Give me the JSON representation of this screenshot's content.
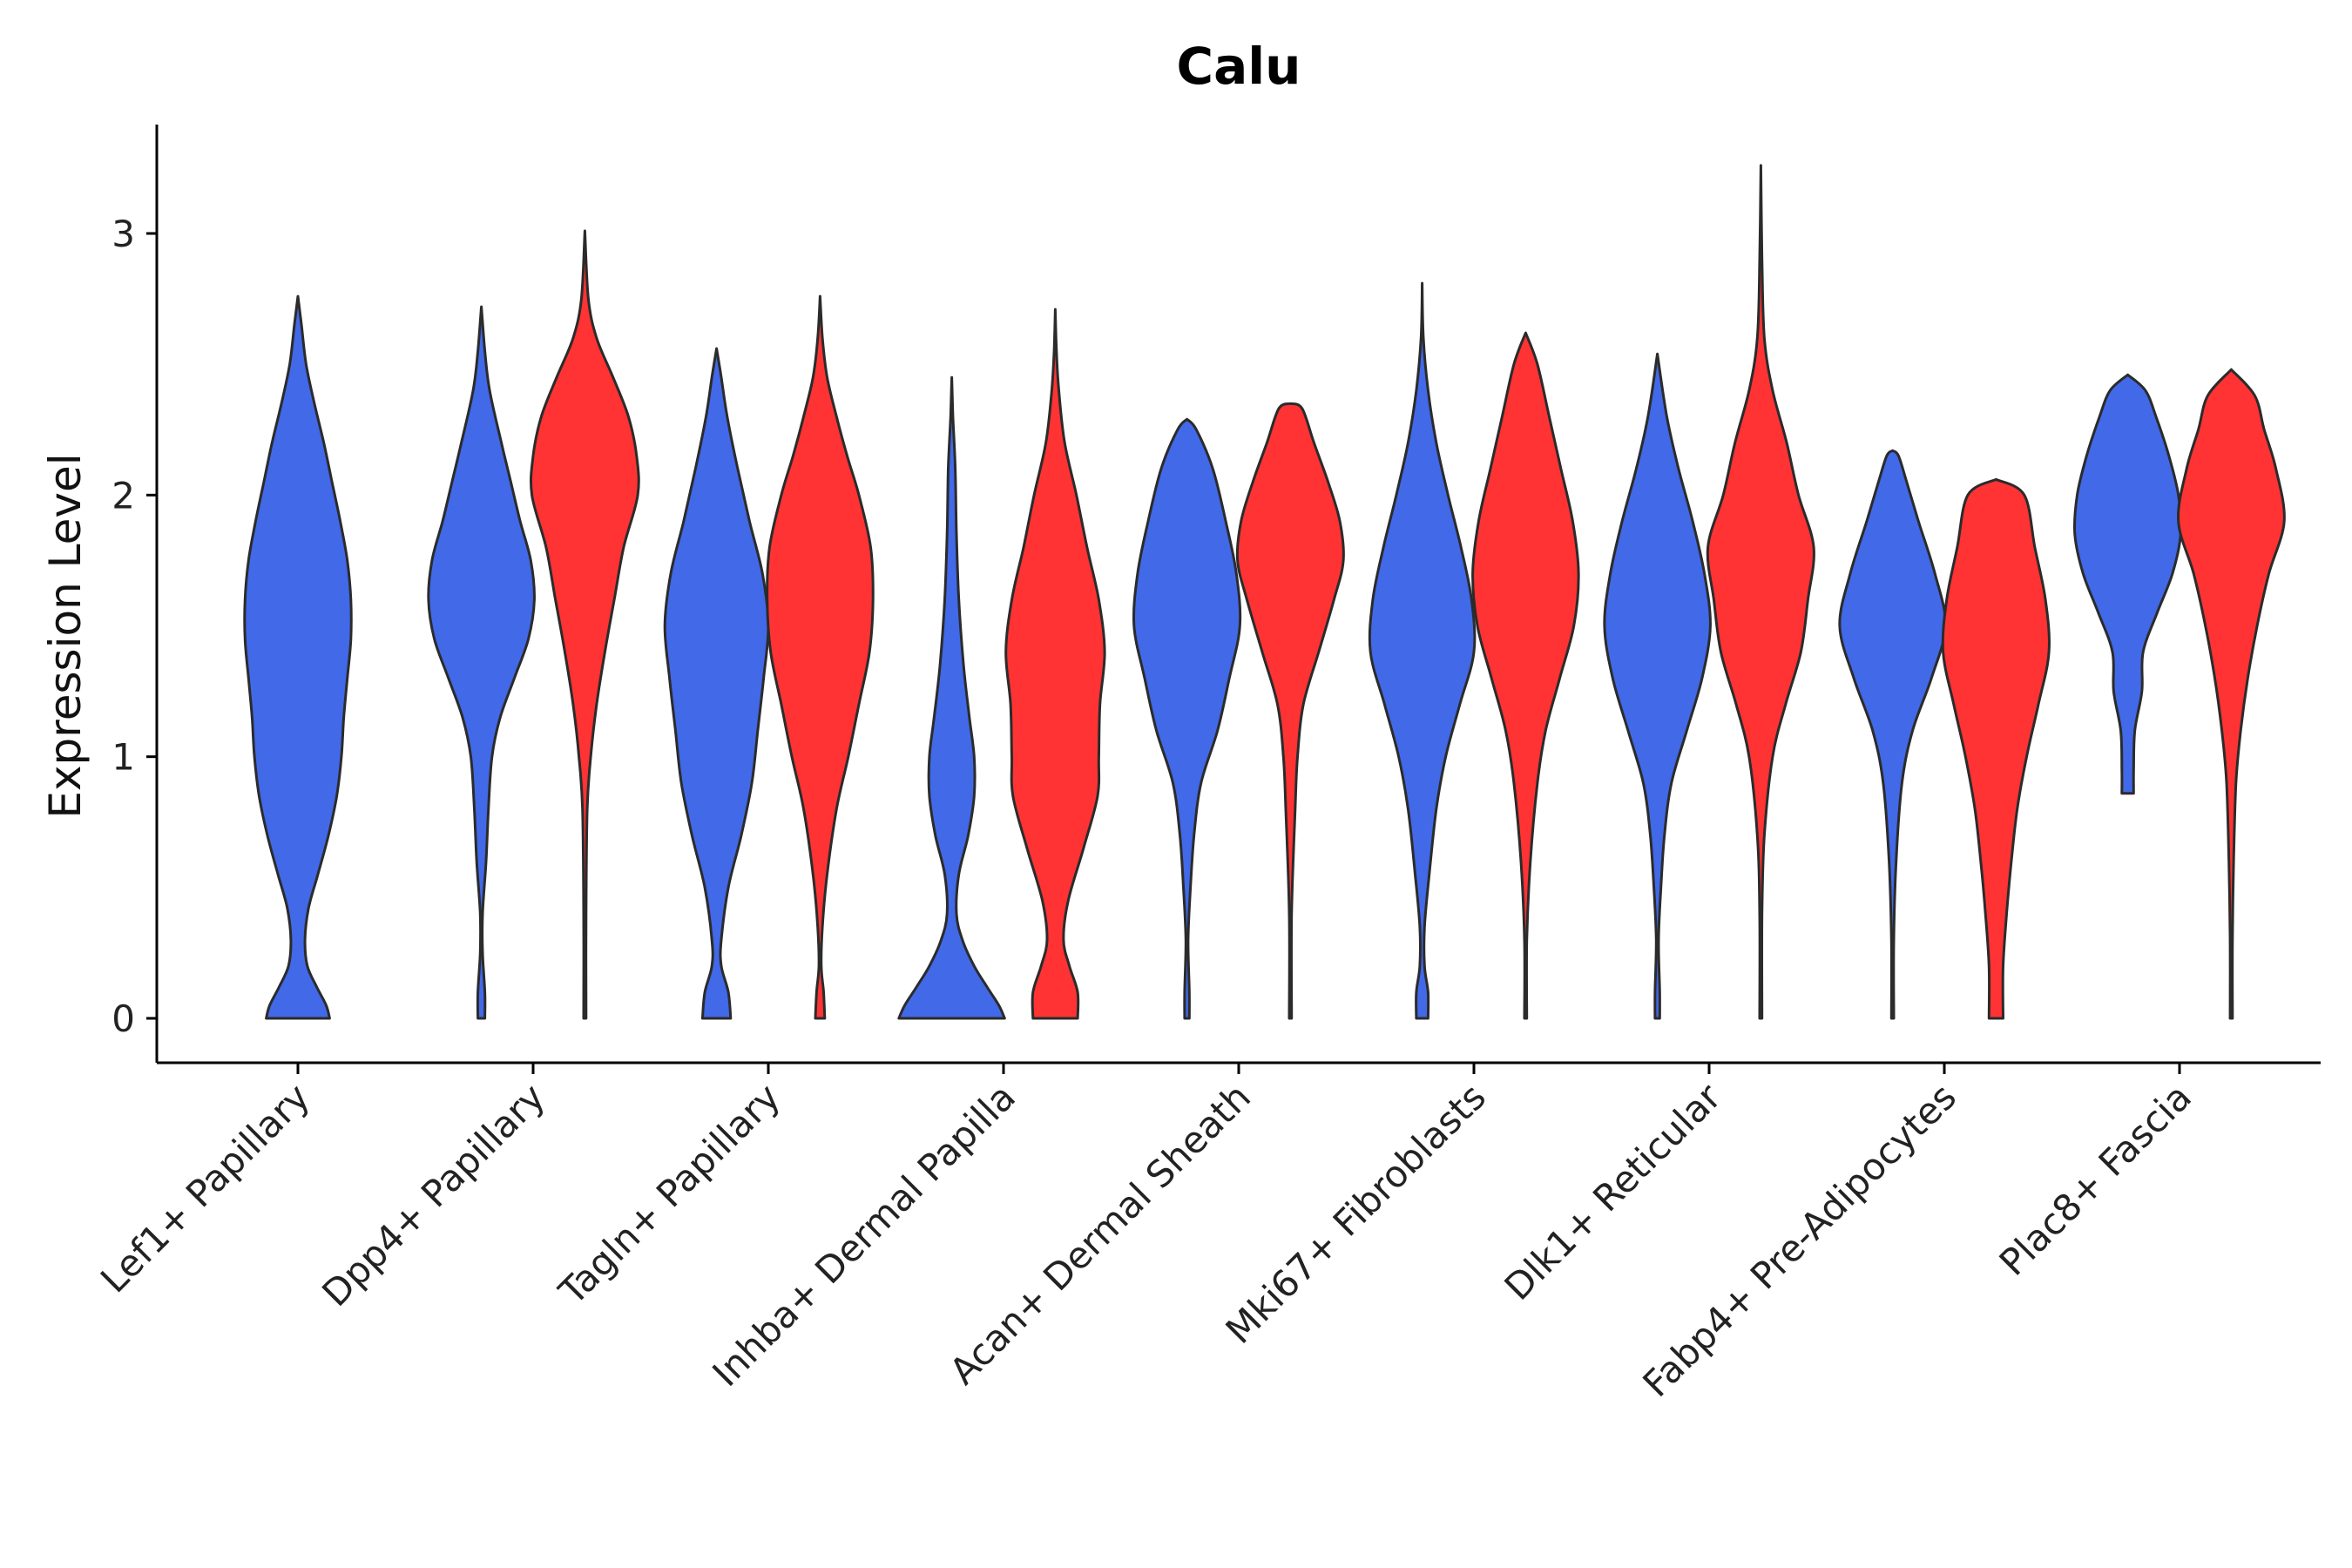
{
  "chart_data": {
    "type": "violin",
    "title": "Calu",
    "xlabel": "",
    "ylabel": "Expression Level",
    "ylim": [
      -0.16,
      3.42
    ],
    "yticks": [
      0,
      1,
      2,
      3
    ],
    "grid": false,
    "legend": "none",
    "series_colors": {
      "group_a": "#4169E8",
      "group_b": "#FF3333"
    },
    "categories": [
      "Lef1+ Papillary",
      "Dpp4+ Papillary",
      "Tagln+ Papillary",
      "Inhba+ Dermal Papilla",
      "Acan+ Dermal Sheath",
      "Mki67+ Fibroblasts",
      "Dlk1+ Reticular",
      "Fabp4+ Pre-Adipocytes",
      "Plac8+ Fascia"
    ],
    "violins": [
      {
        "category": "Lef1+ Papillary",
        "group": "group_a",
        "center": 0.0,
        "max_halfwidth": 0.45,
        "profile": [
          [
            0,
            0.27
          ],
          [
            0.05,
            0.24
          ],
          [
            0.12,
            0.16
          ],
          [
            0.2,
            0.08
          ],
          [
            0.3,
            0.06
          ],
          [
            0.42,
            0.09
          ],
          [
            0.55,
            0.17
          ],
          [
            0.7,
            0.26
          ],
          [
            0.85,
            0.33
          ],
          [
            1.0,
            0.37
          ],
          [
            1.15,
            0.39
          ],
          [
            1.3,
            0.42
          ],
          [
            1.45,
            0.45
          ],
          [
            1.6,
            0.45
          ],
          [
            1.75,
            0.42
          ],
          [
            1.9,
            0.36
          ],
          [
            2.05,
            0.29
          ],
          [
            2.2,
            0.22
          ],
          [
            2.35,
            0.14
          ],
          [
            2.5,
            0.07
          ],
          [
            2.65,
            0.03
          ],
          [
            2.76,
            0.0
          ]
        ]
      },
      {
        "category": "Dpp4+ Papillary",
        "group": "group_a",
        "center": -0.22,
        "max_halfwidth": 0.45,
        "profile": [
          [
            0,
            0.03
          ],
          [
            0.1,
            0.03
          ],
          [
            0.25,
            0.01
          ],
          [
            0.4,
            0.01
          ],
          [
            0.6,
            0.04
          ],
          [
            0.8,
            0.06
          ],
          [
            1.0,
            0.09
          ],
          [
            1.15,
            0.16
          ],
          [
            1.3,
            0.28
          ],
          [
            1.45,
            0.4
          ],
          [
            1.6,
            0.45
          ],
          [
            1.75,
            0.42
          ],
          [
            1.9,
            0.33
          ],
          [
            2.05,
            0.25
          ],
          [
            2.2,
            0.17
          ],
          [
            2.4,
            0.07
          ],
          [
            2.55,
            0.03
          ],
          [
            2.72,
            0.0
          ]
        ]
      },
      {
        "category": "Dpp4+ Papillary",
        "group": "group_b",
        "center": 0.22,
        "max_halfwidth": 0.45,
        "profile": [
          [
            0,
            0.01
          ],
          [
            0.4,
            0.01
          ],
          [
            0.8,
            0.02
          ],
          [
            1.0,
            0.05
          ],
          [
            1.2,
            0.1
          ],
          [
            1.4,
            0.17
          ],
          [
            1.6,
            0.25
          ],
          [
            1.8,
            0.33
          ],
          [
            2.0,
            0.45
          ],
          [
            2.15,
            0.44
          ],
          [
            2.3,
            0.37
          ],
          [
            2.45,
            0.24
          ],
          [
            2.6,
            0.1
          ],
          [
            2.75,
            0.03
          ],
          [
            3.01,
            0.0
          ]
        ]
      },
      {
        "category": "Tagln+ Papillary",
        "group": "group_a",
        "center": -0.22,
        "max_halfwidth": 0.45,
        "profile": [
          [
            0,
            0.12
          ],
          [
            0.1,
            0.1
          ],
          [
            0.2,
            0.04
          ],
          [
            0.3,
            0.04
          ],
          [
            0.5,
            0.1
          ],
          [
            0.7,
            0.21
          ],
          [
            0.9,
            0.3
          ],
          [
            1.1,
            0.35
          ],
          [
            1.3,
            0.4
          ],
          [
            1.5,
            0.44
          ],
          [
            1.7,
            0.39
          ],
          [
            1.9,
            0.28
          ],
          [
            2.1,
            0.18
          ],
          [
            2.3,
            0.09
          ],
          [
            2.45,
            0.04
          ],
          [
            2.56,
            0.0
          ]
        ]
      },
      {
        "category": "Tagln+ Papillary",
        "group": "group_b",
        "center": 0.22,
        "max_halfwidth": 0.45,
        "profile": [
          [
            0,
            0.04
          ],
          [
            0.1,
            0.03
          ],
          [
            0.2,
            0.01
          ],
          [
            0.35,
            0.02
          ],
          [
            0.55,
            0.06
          ],
          [
            0.8,
            0.14
          ],
          [
            1.0,
            0.24
          ],
          [
            1.2,
            0.33
          ],
          [
            1.4,
            0.42
          ],
          [
            1.6,
            0.45
          ],
          [
            1.8,
            0.43
          ],
          [
            2.0,
            0.33
          ],
          [
            2.15,
            0.23
          ],
          [
            2.3,
            0.14
          ],
          [
            2.45,
            0.06
          ],
          [
            2.6,
            0.02
          ],
          [
            2.76,
            0.0
          ]
        ]
      },
      {
        "category": "Inhba+ Dermal Papilla",
        "group": "group_a",
        "center": -0.22,
        "max_halfwidth": 0.45,
        "profile": [
          [
            0,
            0.45
          ],
          [
            0.05,
            0.4
          ],
          [
            0.12,
            0.3
          ],
          [
            0.2,
            0.19
          ],
          [
            0.3,
            0.09
          ],
          [
            0.4,
            0.04
          ],
          [
            0.55,
            0.06
          ],
          [
            0.7,
            0.14
          ],
          [
            0.85,
            0.19
          ],
          [
            1.0,
            0.19
          ],
          [
            1.15,
            0.15
          ],
          [
            1.35,
            0.1
          ],
          [
            1.6,
            0.06
          ],
          [
            1.85,
            0.04
          ],
          [
            2.1,
            0.03
          ],
          [
            2.3,
            0.01
          ],
          [
            2.45,
            0.0
          ]
        ]
      },
      {
        "category": "Inhba+ Dermal Papilla",
        "group": "group_b",
        "center": 0.22,
        "max_halfwidth": 0.45,
        "profile": [
          [
            0,
            0.19
          ],
          [
            0.1,
            0.19
          ],
          [
            0.2,
            0.12
          ],
          [
            0.3,
            0.07
          ],
          [
            0.45,
            0.11
          ],
          [
            0.65,
            0.24
          ],
          [
            0.85,
            0.36
          ],
          [
            1.0,
            0.37
          ],
          [
            1.2,
            0.38
          ],
          [
            1.4,
            0.42
          ],
          [
            1.6,
            0.37
          ],
          [
            1.8,
            0.27
          ],
          [
            2.0,
            0.18
          ],
          [
            2.2,
            0.08
          ],
          [
            2.4,
            0.03
          ],
          [
            2.55,
            0.01
          ],
          [
            2.71,
            0.0
          ]
        ]
      },
      {
        "category": "Acan+ Dermal Sheath",
        "group": "group_a",
        "center": -0.22,
        "max_halfwidth": 0.45,
        "profile": [
          [
            0,
            0.02
          ],
          [
            0.1,
            0.02
          ],
          [
            0.3,
            0.01
          ],
          [
            0.5,
            0.03
          ],
          [
            0.7,
            0.06
          ],
          [
            0.9,
            0.12
          ],
          [
            1.1,
            0.26
          ],
          [
            1.3,
            0.36
          ],
          [
            1.5,
            0.45
          ],
          [
            1.7,
            0.42
          ],
          [
            1.9,
            0.33
          ],
          [
            2.1,
            0.22
          ],
          [
            2.25,
            0.08
          ],
          [
            2.29,
            0.0
          ]
        ]
      },
      {
        "category": "Acan+ Dermal Sheath",
        "group": "group_b",
        "center": 0.22,
        "max_halfwidth": 0.45,
        "profile": [
          [
            0,
            0.01
          ],
          [
            0.4,
            0.01
          ],
          [
            0.8,
            0.04
          ],
          [
            1.0,
            0.06
          ],
          [
            1.2,
            0.11
          ],
          [
            1.4,
            0.24
          ],
          [
            1.6,
            0.37
          ],
          [
            1.75,
            0.45
          ],
          [
            1.9,
            0.42
          ],
          [
            2.05,
            0.32
          ],
          [
            2.2,
            0.2
          ],
          [
            2.33,
            0.1
          ],
          [
            2.35,
            0.0
          ]
        ]
      },
      {
        "category": "Mki67+ Fibroblasts",
        "group": "group_a",
        "center": -0.22,
        "max_halfwidth": 0.45,
        "profile": [
          [
            0,
            0.05
          ],
          [
            0.1,
            0.05
          ],
          [
            0.2,
            0.02
          ],
          [
            0.35,
            0.02
          ],
          [
            0.55,
            0.06
          ],
          [
            0.8,
            0.12
          ],
          [
            1.0,
            0.2
          ],
          [
            1.2,
            0.32
          ],
          [
            1.4,
            0.44
          ],
          [
            1.6,
            0.42
          ],
          [
            1.8,
            0.33
          ],
          [
            2.0,
            0.22
          ],
          [
            2.2,
            0.12
          ],
          [
            2.4,
            0.05
          ],
          [
            2.6,
            0.01
          ],
          [
            2.81,
            0.0
          ]
        ]
      },
      {
        "category": "Mki67+ Fibroblasts",
        "group": "group_b",
        "center": 0.22,
        "max_halfwidth": 0.45,
        "profile": [
          [
            0,
            0.01
          ],
          [
            0.3,
            0.01
          ],
          [
            0.6,
            0.04
          ],
          [
            0.9,
            0.1
          ],
          [
            1.1,
            0.17
          ],
          [
            1.3,
            0.29
          ],
          [
            1.5,
            0.41
          ],
          [
            1.7,
            0.45
          ],
          [
            1.9,
            0.4
          ],
          [
            2.1,
            0.3
          ],
          [
            2.3,
            0.2
          ],
          [
            2.5,
            0.1
          ],
          [
            2.62,
            0.0
          ]
        ]
      },
      {
        "category": "Dlk1+ Reticular",
        "group": "group_a",
        "center": -0.22,
        "max_halfwidth": 0.45,
        "profile": [
          [
            0,
            0.02
          ],
          [
            0.1,
            0.02
          ],
          [
            0.3,
            0.01
          ],
          [
            0.5,
            0.03
          ],
          [
            0.7,
            0.06
          ],
          [
            0.9,
            0.12
          ],
          [
            1.1,
            0.25
          ],
          [
            1.3,
            0.38
          ],
          [
            1.5,
            0.45
          ],
          [
            1.7,
            0.4
          ],
          [
            1.9,
            0.3
          ],
          [
            2.1,
            0.18
          ],
          [
            2.3,
            0.08
          ],
          [
            2.54,
            0.0
          ]
        ]
      },
      {
        "category": "Dlk1+ Reticular",
        "group": "group_b",
        "center": 0.22,
        "max_halfwidth": 0.45,
        "profile": [
          [
            0,
            0.01
          ],
          [
            0.4,
            0.01
          ],
          [
            0.7,
            0.03
          ],
          [
            1.0,
            0.1
          ],
          [
            1.2,
            0.21
          ],
          [
            1.4,
            0.34
          ],
          [
            1.6,
            0.4
          ],
          [
            1.8,
            0.45
          ],
          [
            2.0,
            0.32
          ],
          [
            2.2,
            0.22
          ],
          [
            2.4,
            0.1
          ],
          [
            2.6,
            0.03
          ],
          [
            2.9,
            0.01
          ],
          [
            3.26,
            0.0
          ]
        ]
      },
      {
        "category": "Fabp4+ Pre-Adipocytes",
        "group": "group_a",
        "center": -0.22,
        "max_halfwidth": 0.45,
        "profile": [
          [
            0,
            0.01
          ],
          [
            0.3,
            0.01
          ],
          [
            0.6,
            0.03
          ],
          [
            0.9,
            0.08
          ],
          [
            1.1,
            0.17
          ],
          [
            1.3,
            0.33
          ],
          [
            1.5,
            0.45
          ],
          [
            1.7,
            0.36
          ],
          [
            1.9,
            0.22
          ],
          [
            2.05,
            0.12
          ],
          [
            2.15,
            0.05
          ],
          [
            2.17,
            0.0
          ]
        ]
      },
      {
        "category": "Fabp4+ Pre-Adipocytes",
        "group": "group_b",
        "center": 0.22,
        "max_halfwidth": 0.45,
        "profile": [
          [
            0,
            0.06
          ],
          [
            0.2,
            0.06
          ],
          [
            0.4,
            0.09
          ],
          [
            0.6,
            0.13
          ],
          [
            0.8,
            0.18
          ],
          [
            1.0,
            0.26
          ],
          [
            1.2,
            0.36
          ],
          [
            1.4,
            0.45
          ],
          [
            1.6,
            0.42
          ],
          [
            1.8,
            0.33
          ],
          [
            2.0,
            0.24
          ],
          [
            2.06,
            0.0
          ]
        ]
      },
      {
        "category": "Plac8+ Fascia",
        "group": "group_a",
        "center": -0.22,
        "max_halfwidth": 0.45,
        "profile": [
          [
            0.86,
            0.05
          ],
          [
            0.95,
            0.05
          ],
          [
            1.1,
            0.06
          ],
          [
            1.25,
            0.12
          ],
          [
            1.4,
            0.13
          ],
          [
            1.55,
            0.25
          ],
          [
            1.7,
            0.38
          ],
          [
            1.85,
            0.45
          ],
          [
            2.0,
            0.43
          ],
          [
            2.15,
            0.35
          ],
          [
            2.3,
            0.24
          ],
          [
            2.4,
            0.15
          ],
          [
            2.46,
            0.0
          ]
        ]
      },
      {
        "category": "Plac8+ Fascia",
        "group": "group_b",
        "center": 0.22,
        "max_halfwidth": 0.45,
        "profile": [
          [
            0,
            0.01
          ],
          [
            0.3,
            0.01
          ],
          [
            0.6,
            0.02
          ],
          [
            0.9,
            0.04
          ],
          [
            1.1,
            0.08
          ],
          [
            1.3,
            0.14
          ],
          [
            1.5,
            0.22
          ],
          [
            1.7,
            0.32
          ],
          [
            1.9,
            0.45
          ],
          [
            2.1,
            0.38
          ],
          [
            2.25,
            0.28
          ],
          [
            2.38,
            0.2
          ],
          [
            2.48,
            0.0
          ]
        ]
      }
    ]
  }
}
